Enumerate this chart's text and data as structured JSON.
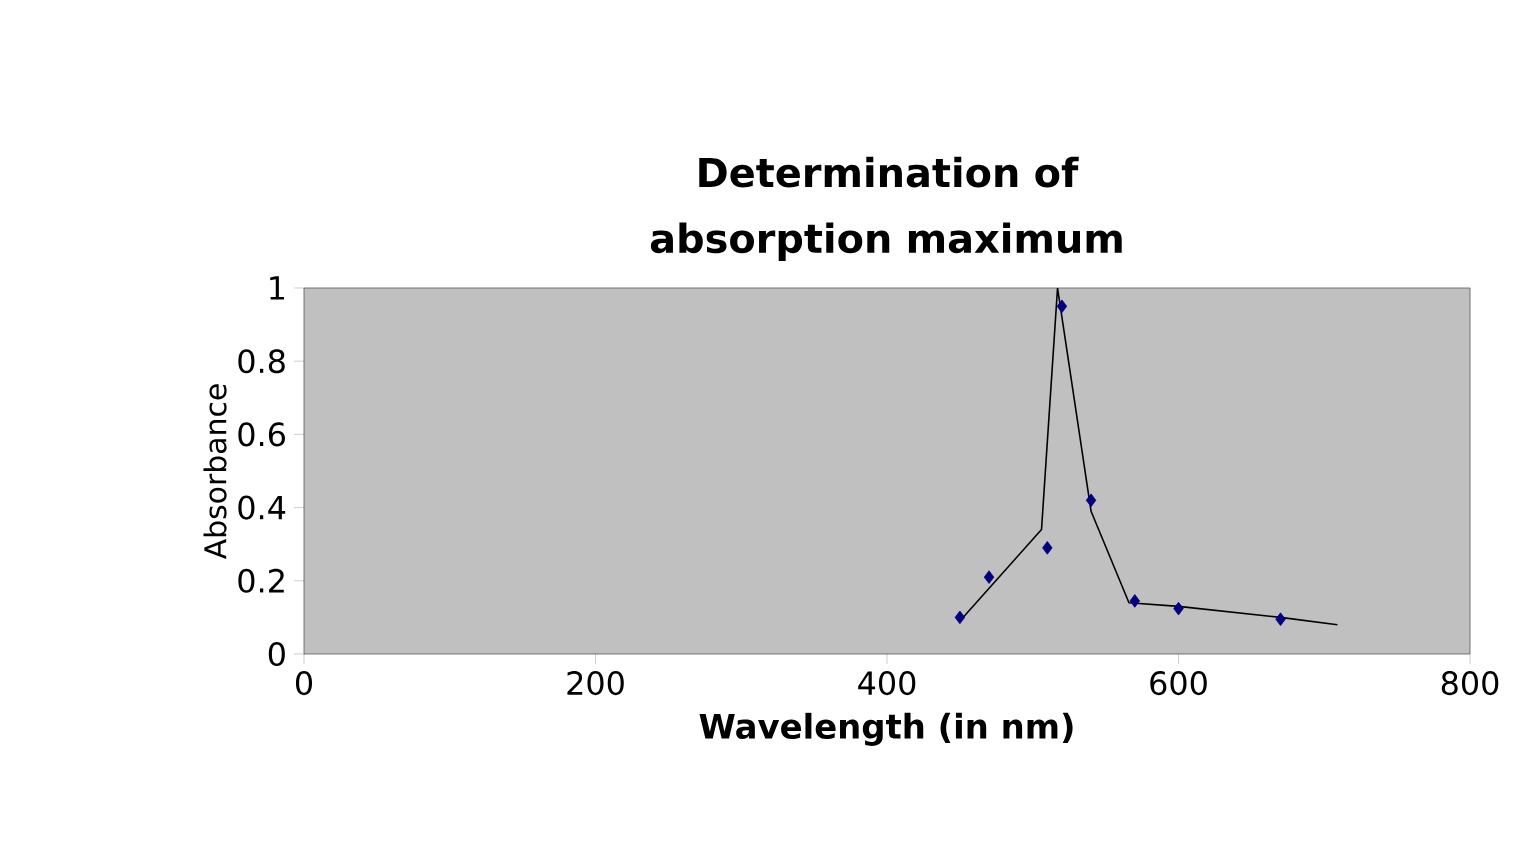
{
  "chart_data": {
    "type": "scatter",
    "title": "Determination of absorption maximum",
    "xlabel": "Wavelength (in nm)",
    "ylabel": "Absorbance",
    "xlim": [
      0,
      800
    ],
    "xticks": [
      0,
      200,
      400,
      600,
      800
    ],
    "ylim": [
      0,
      1
    ],
    "yticks": [
      0,
      0.2,
      0.4,
      0.6,
      0.8,
      1
    ],
    "series": [
      {
        "type": "line",
        "color": "#000000",
        "marker": "none",
        "x": [
          450,
          506,
          517,
          540,
          566,
          600,
          670,
          709
        ],
        "values": [
          0.09,
          0.34,
          1.0,
          0.39,
          0.14,
          0.13,
          0.1,
          0.08
        ]
      },
      {
        "color": "#000080",
        "marker": "diamond",
        "x": [
          450,
          470,
          510,
          520,
          540,
          570,
          600,
          670
        ],
        "values": [
          0.1,
          0.21,
          0.29,
          0.95,
          0.42,
          0.145,
          0.124,
          0.095
        ]
      }
    ],
    "grid": false,
    "legend": false
  }
}
